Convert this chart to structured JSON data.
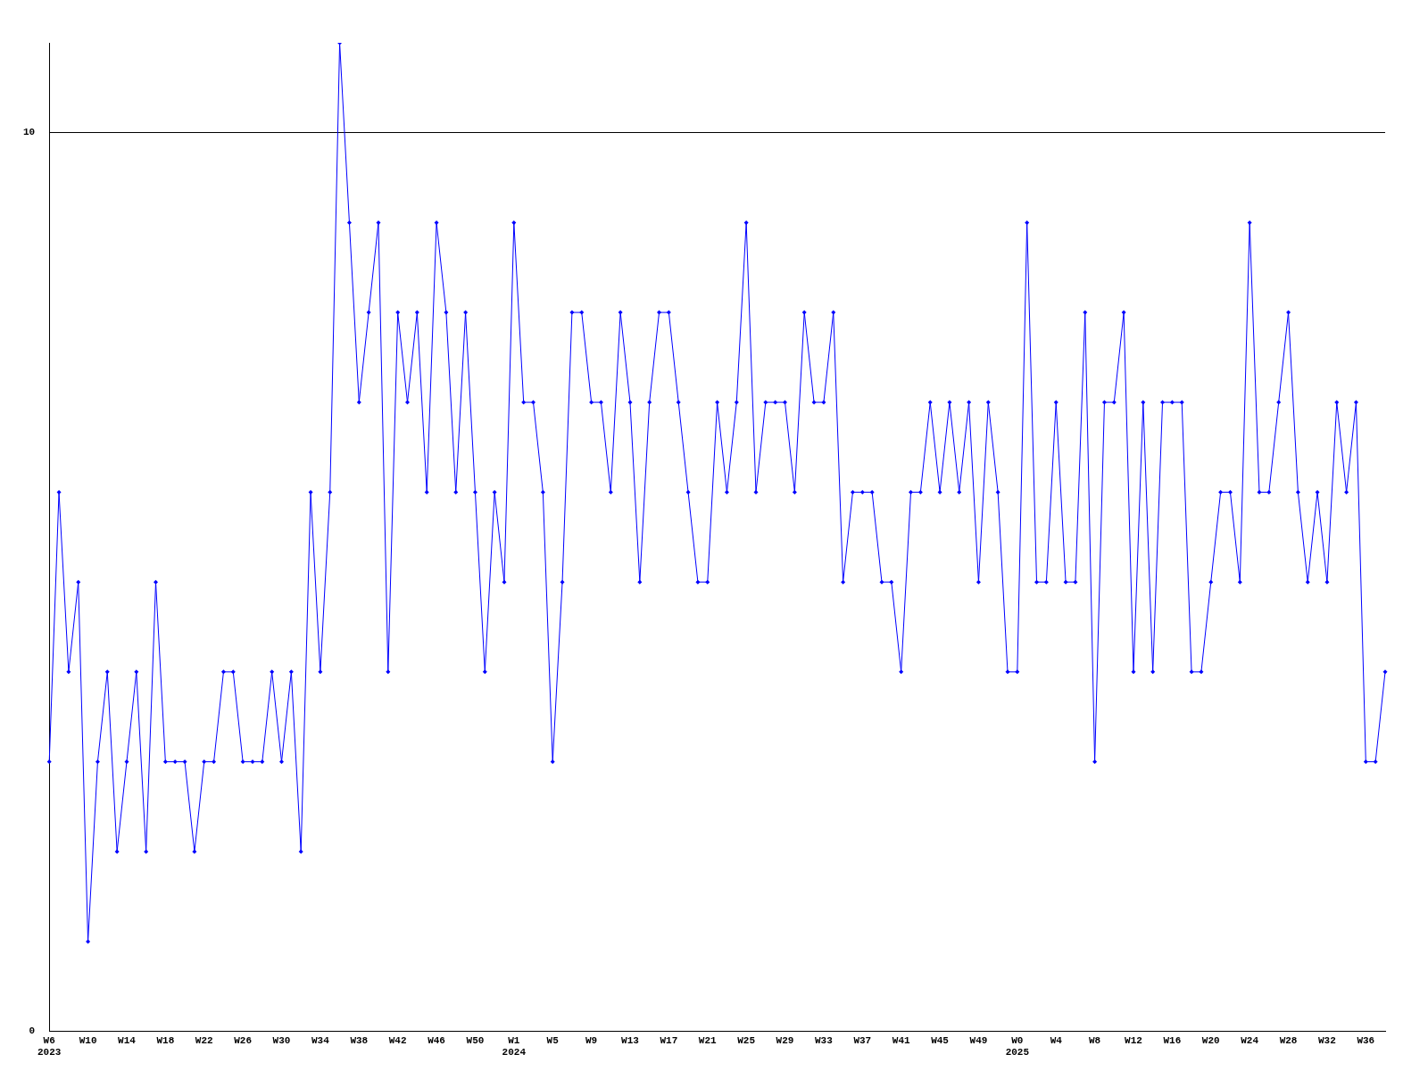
{
  "chart_data": {
    "type": "line",
    "categories": [
      "W6\n2023",
      null,
      null,
      null,
      "W10",
      null,
      null,
      null,
      "W14",
      null,
      null,
      null,
      "W18",
      null,
      null,
      null,
      "W22",
      null,
      null,
      null,
      "W26",
      null,
      null,
      null,
      "W30",
      null,
      null,
      null,
      "W34",
      null,
      null,
      null,
      "W38",
      null,
      null,
      null,
      "W42",
      null,
      null,
      null,
      "W46",
      null,
      null,
      null,
      "W50",
      null,
      null,
      null,
      "W1\n2024",
      null,
      null,
      null,
      "W5",
      null,
      null,
      null,
      "W9",
      null,
      null,
      null,
      "W13",
      null,
      null,
      null,
      "W17",
      null,
      null,
      null,
      "W21",
      null,
      null,
      null,
      "W25",
      null,
      null,
      null,
      "W29",
      null,
      null,
      null,
      "W33",
      null,
      null,
      null,
      "W37",
      null,
      null,
      null,
      "W41",
      null,
      null,
      null,
      "W45",
      null,
      null,
      null,
      "W49",
      null,
      null,
      null,
      "W0\n2025",
      null,
      null,
      null,
      "W4",
      null,
      null,
      null,
      "W8",
      null,
      null,
      null,
      "W12",
      null,
      null,
      null,
      "W16",
      null,
      null,
      null,
      "W20",
      null,
      null,
      null,
      "W24",
      null,
      null,
      null,
      "W28",
      null,
      null,
      null,
      "W32",
      null,
      null,
      null,
      "W36",
      null,
      null
    ],
    "series": [
      {
        "color": "#0000ff",
        "values": [
          3,
          6,
          4,
          5,
          1,
          3,
          4,
          2,
          3,
          4,
          2,
          5,
          3,
          3,
          3,
          2,
          3,
          3,
          4,
          4,
          3,
          3,
          3,
          4,
          3,
          4,
          2,
          6,
          4,
          6,
          11,
          9,
          7,
          8,
          9,
          4,
          8,
          7,
          8,
          6,
          9,
          8,
          6,
          8,
          6,
          4,
          6,
          5,
          9,
          7,
          7,
          6,
          3,
          5,
          8,
          8,
          7,
          7,
          6,
          8,
          7,
          5,
          7,
          8,
          8,
          7,
          6,
          5,
          5,
          7,
          6,
          7,
          9,
          6,
          7,
          7,
          7,
          6,
          8,
          7,
          7,
          8,
          5,
          6,
          6,
          6,
          5,
          5,
          4,
          6,
          6,
          7,
          6,
          7,
          6,
          7,
          5,
          7,
          6,
          4,
          4,
          9,
          5,
          5,
          7,
          5,
          5,
          8,
          3,
          7,
          7,
          8,
          4,
          7,
          4,
          7,
          7,
          7,
          4,
          4,
          5,
          6,
          6,
          5,
          9,
          6,
          6,
          7,
          8,
          6,
          5,
          6,
          5,
          7,
          6,
          7,
          3,
          3,
          4
        ]
      }
    ],
    "ylim": [
      0,
      11
    ],
    "yticks": [
      0,
      10
    ],
    "grid": "y",
    "marker": "diamond",
    "line_style": "solid"
  }
}
